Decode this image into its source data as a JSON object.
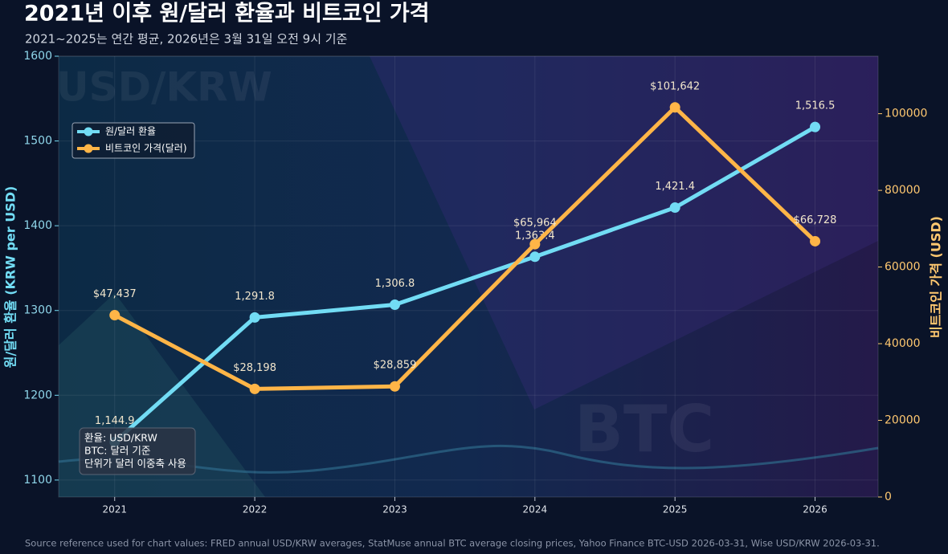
{
  "chart_data": {
    "type": "line",
    "title": "2021년 이후 원/달러 환율과 비트코인 가격",
    "subtitle": "2021~2025는 연간 평균, 2026년은 3월 31일 오전 9시 기준",
    "y_label": "원/달러 환율 (KRW per USD)",
    "y2_label": "비트코인 가격 (USD)",
    "x": [
      2021,
      2022,
      2023,
      2024,
      2025,
      2026
    ],
    "xlim": [
      2020.6,
      2026.45
    ],
    "xticks": [
      2021,
      2022,
      2023,
      2024,
      2025,
      2026
    ],
    "ylim": [
      1080,
      1600
    ],
    "yticks": [
      1100,
      1200,
      1300,
      1400,
      1500,
      1600
    ],
    "y2lim": [
      0,
      115000
    ],
    "y2ticks": [
      0,
      20000,
      40000,
      60000,
      80000,
      100000
    ],
    "grid": true,
    "legend": "upper left",
    "series": [
      {
        "name": "원/달러 환율",
        "color": "#72dcf4",
        "values": [
          1144.9,
          1291.8,
          1306.8,
          1363.4,
          1421.4,
          1516.5
        ],
        "value_labels": [
          "1,144.9",
          "1,291.8",
          "1,306.8",
          "1,363.4",
          "1,421.4",
          "1,516.5"
        ]
      },
      {
        "name": "비트코인 가격(달러)",
        "color": "#ffb547",
        "axis": "y2",
        "values": [
          47437,
          28198,
          28859,
          65964,
          101642,
          66728
        ],
        "value_labels": [
          "$47,437",
          "$28,198",
          "$28,859",
          "$65,964",
          "$101,642",
          "$66,728"
        ]
      }
    ],
    "watermarks": [
      "USD/KRW",
      "BTC"
    ],
    "annotation": [
      "환율: USD/KRW",
      "BTC: 달러 기준",
      "단위가 달러 이중축 사용"
    ],
    "source": "Source reference used for chart values: FRED annual USD/KRW averages, StatMuse annual BTC average closing prices, Yahoo Finance BTC-USD 2026-03-31, Wise USD/KRW 2026-03-31."
  }
}
